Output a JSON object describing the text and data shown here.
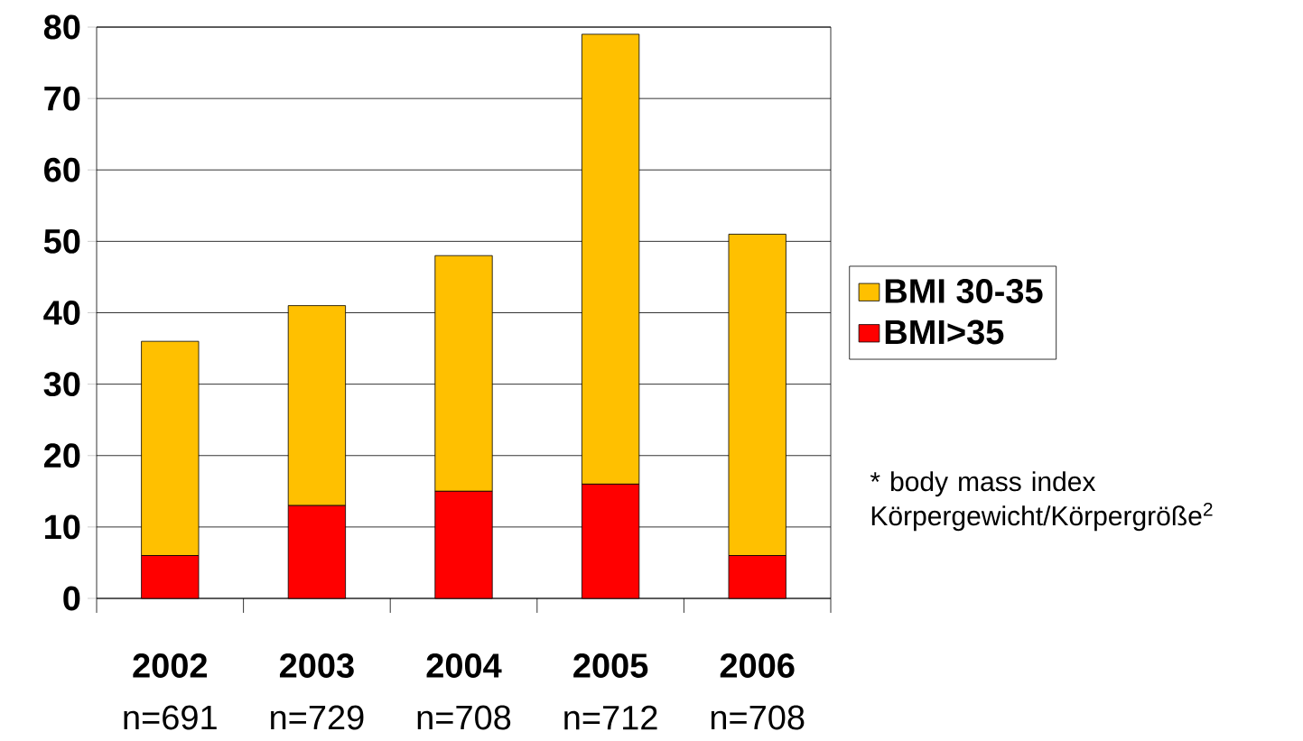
{
  "chart_data": {
    "type": "bar",
    "stacked": true,
    "categories": [
      "2002",
      "2003",
      "2004",
      "2005",
      "2006"
    ],
    "series": [
      {
        "name": "BMI>35",
        "color": "#ff0000",
        "values": [
          6,
          13,
          15,
          16,
          6
        ]
      },
      {
        "name": "BMI 30-35",
        "color": "#ffc000",
        "values": [
          30,
          28,
          33,
          63,
          45
        ]
      }
    ],
    "ylim": [
      0,
      80
    ],
    "yticks": [
      0,
      10,
      20,
      30,
      40,
      50,
      60,
      70,
      80
    ],
    "grid": "y",
    "legend": "right",
    "annotations": [
      "n=691",
      "n=729",
      "n=708",
      "n=712",
      "n=708",
      "* body mass index Körpergewicht/Körpergröße$^{2}$"
    ]
  }
}
